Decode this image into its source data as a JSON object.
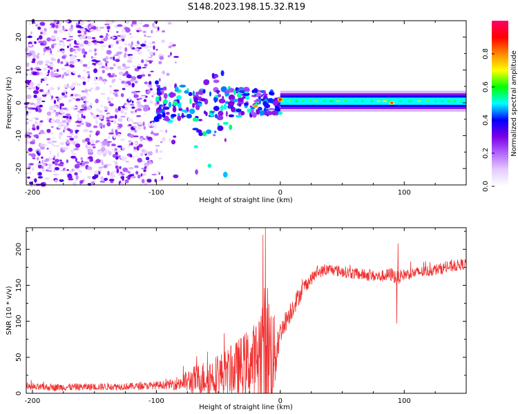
{
  "title": "S148.2023.198.15.32.R19",
  "chart_data": [
    {
      "type": "heatmap",
      "xlabel": "Height of straight line (km)",
      "ylabel": "Frequency (Hz)",
      "xlim": [
        -205,
        150
      ],
      "ylim": [
        -25,
        25
      ],
      "x_ticks": [
        -200,
        -100,
        0,
        100
      ],
      "y_ticks": [
        -20,
        -10,
        0,
        10,
        20
      ],
      "colorbar": {
        "label": "Normalized spectral amplitude",
        "range": [
          0.0,
          1.0
        ],
        "ticks": [
          0.0,
          0.2,
          0.4,
          0.6,
          0.8
        ],
        "colormap": [
          "#ffffff",
          "#e6ccff",
          "#b266ff",
          "#7a00e6",
          "#0000ff",
          "#00ffff",
          "#00ff00",
          "#ffff00",
          "#ff8800",
          "#ff0000",
          "#ff0066"
        ]
      },
      "ridge": {
        "x_start": 0,
        "x_end": 150,
        "frequency": 0.5,
        "amplitude": 0.5,
        "peaks": [
          {
            "x": -20,
            "frequency": -1,
            "amplitude": 0.8
          },
          {
            "x": 0,
            "frequency": 1,
            "amplitude": 0.9
          },
          {
            "x": 90,
            "frequency": 0,
            "amplitude": 0.85
          }
        ]
      },
      "noise_region": {
        "x_start": -205,
        "x_end": -90,
        "frequency_range": [
          -25,
          25
        ],
        "amplitude_range": [
          0.05,
          0.35
        ]
      },
      "transition": {
        "x_start": -100,
        "x_end": 0,
        "amplitude_range": [
          0.2,
          0.55
        ]
      }
    },
    {
      "type": "line",
      "xlabel": "Height of straight line (km)",
      "ylabel": "SNR (10 * v/v)",
      "xlim": [
        -205,
        150
      ],
      "ylim": [
        0,
        230
      ],
      "x_ticks": [
        -200,
        -100,
        0,
        100
      ],
      "y_ticks": [
        0,
        50,
        100,
        150,
        200
      ],
      "series": [
        {
          "color": "#f03030",
          "profile": {
            "x": [
              -205,
              -150,
              -110,
              -90,
              -80,
              -70,
              -60,
              -50,
              -40,
              -30,
              -20,
              -15,
              -10,
              -5,
              0,
              10,
              20,
              30,
              40,
              60,
              80,
              90,
              94,
              100,
              120,
              150
            ],
            "mean": [
              8,
              9,
              10,
              12,
              15,
              18,
              22,
              25,
              30,
              38,
              45,
              55,
              60,
              50,
              85,
              120,
              150,
              168,
              172,
              166,
              162,
              165,
              160,
              165,
              170,
              180
            ],
            "spread": [
              5,
              5,
              5,
              6,
              12,
              20,
              25,
              30,
              35,
              45,
              55,
              90,
              100,
              60,
              15,
              15,
              10,
              8,
              8,
              8,
              8,
              10,
              10,
              8,
              8,
              8
            ]
          },
          "spikes": [
            {
              "x": -12,
              "value": 230
            },
            {
              "x": -14,
              "value": 220
            },
            {
              "x": 94,
              "value": 97
            },
            {
              "x": 95,
              "value": 208
            }
          ]
        }
      ]
    }
  ]
}
